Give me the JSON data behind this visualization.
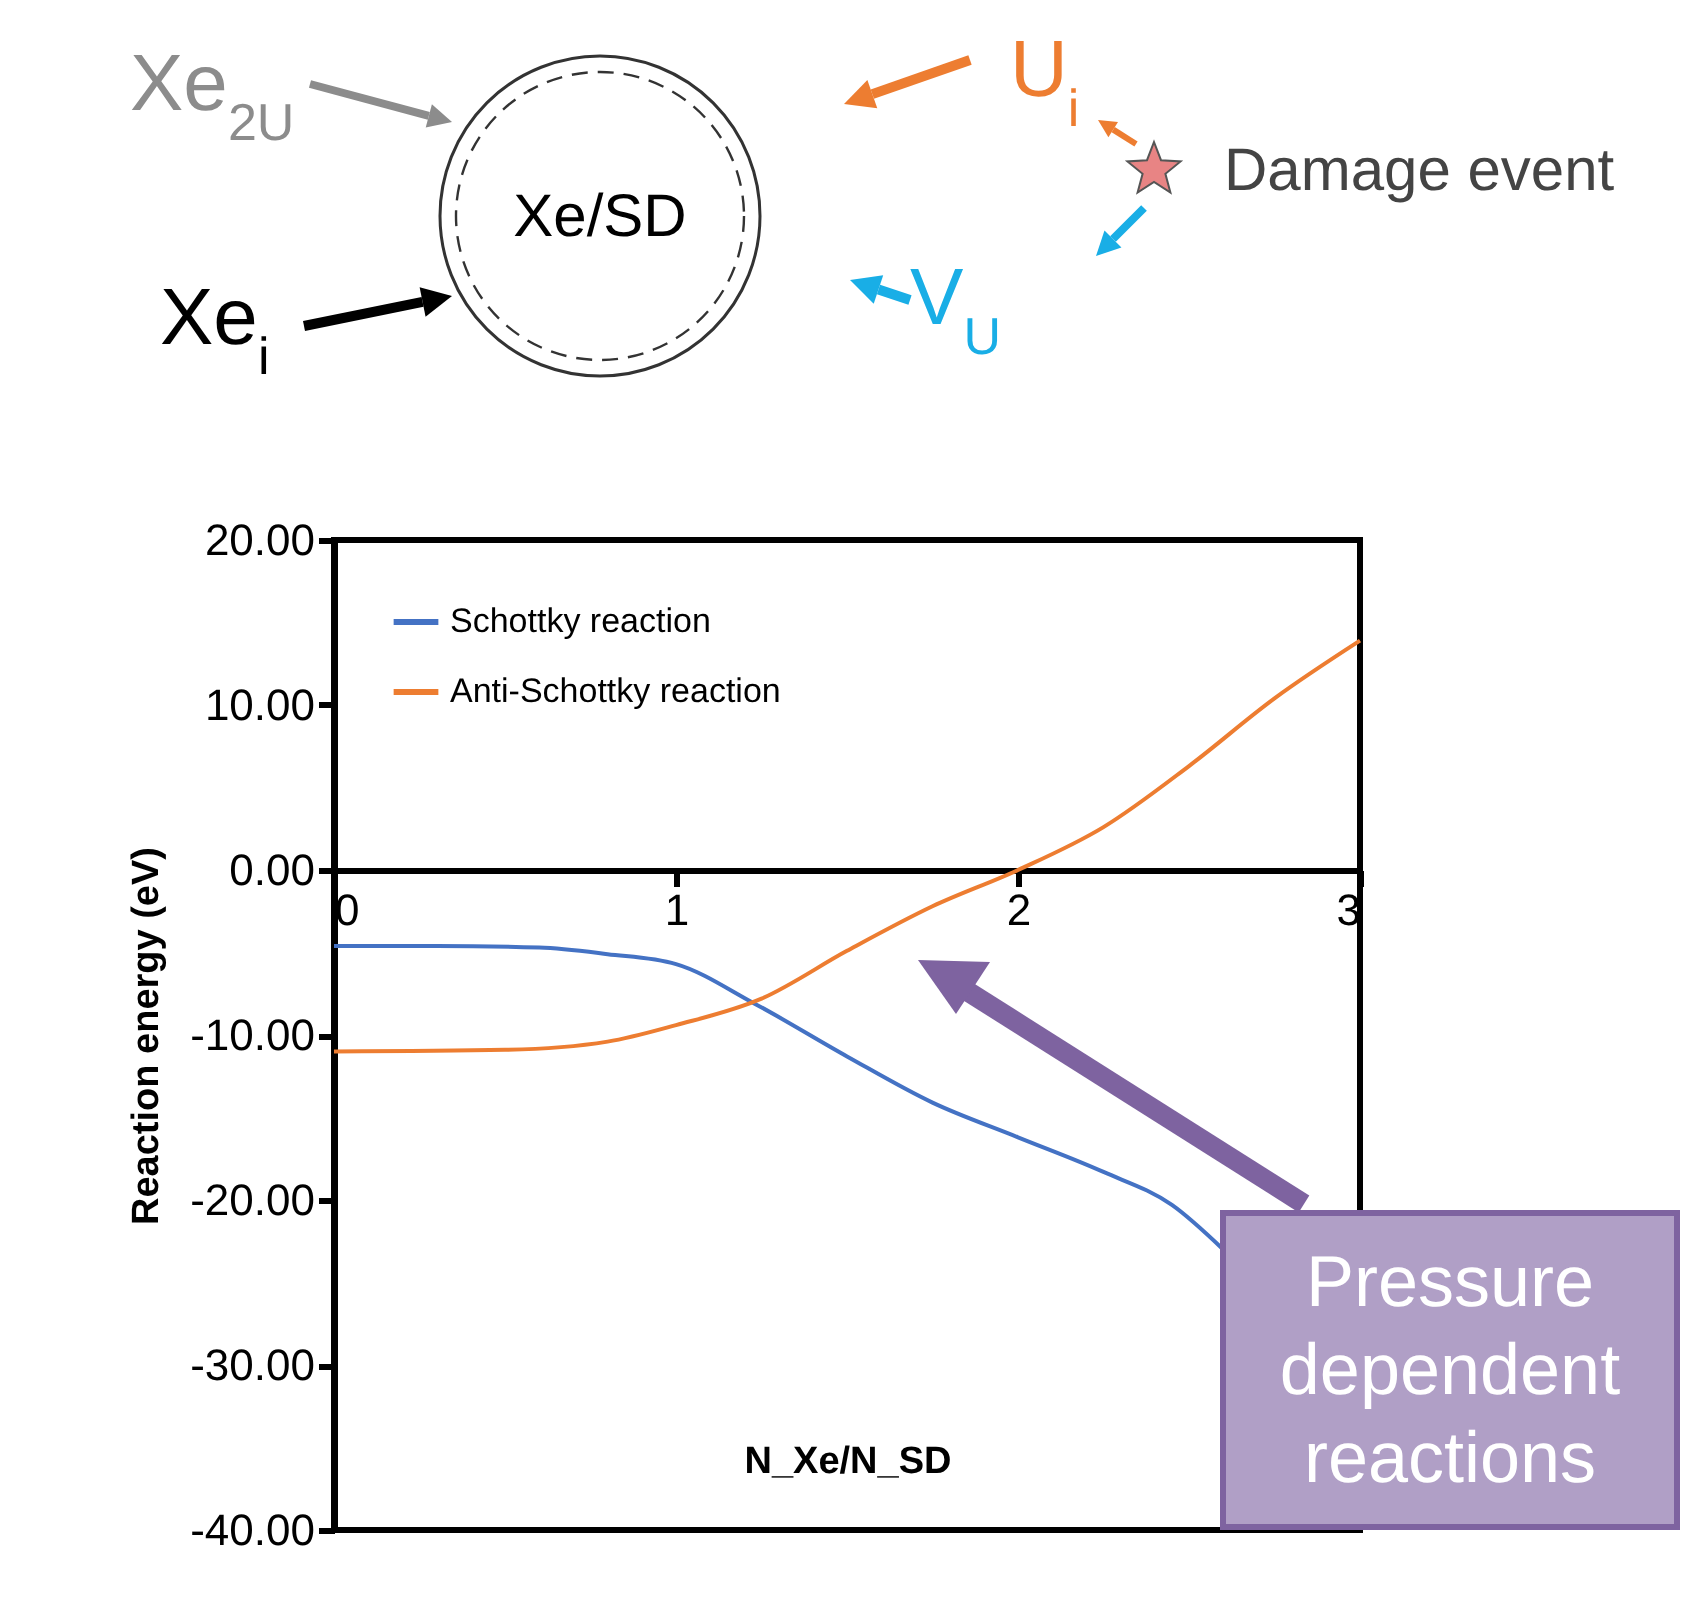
{
  "chart_data": {
    "type": "line",
    "xlabel": "N_Xe/N_SD",
    "ylabel": "Reaction energy (eV)",
    "xlim": [
      0,
      3
    ],
    "xticks": [
      0,
      1,
      2,
      3
    ],
    "ylim": [
      -40,
      20
    ],
    "yticks": [
      {
        "value": -40,
        "label": "-40.00"
      },
      {
        "value": -30,
        "label": "-30.00"
      },
      {
        "value": -20,
        "label": "-20.00"
      },
      {
        "value": -10,
        "label": "-10.00"
      },
      {
        "value": 0,
        "label": "0.00"
      },
      {
        "value": 10,
        "label": "10.00"
      },
      {
        "value": 20,
        "label": "20.00"
      }
    ],
    "series": [
      {
        "name": "Schottky reaction",
        "color": "#4472c4",
        "x": [
          0,
          0.3,
          0.6,
          0.8,
          1,
          1.23,
          1.5,
          1.75,
          2,
          2.25,
          2.45,
          2.6
        ],
        "values": [
          -4.6,
          -4.6,
          -4.7,
          -5.1,
          -5.7,
          -8.1,
          -11.3,
          -14.1,
          -16.2,
          -18.3,
          -20.3,
          -23
        ]
      },
      {
        "name": "Anti-Schottky reaction",
        "color": "#ed7d31",
        "x": [
          0,
          0.5,
          0.8,
          1,
          1.25,
          1.5,
          1.75,
          2,
          2.25,
          2.5,
          2.75,
          3
        ],
        "values": [
          -11,
          -10.9,
          -10.4,
          -9.4,
          -7.8,
          -4.9,
          -2.2,
          0,
          2.6,
          6.3,
          10.4,
          13.9
        ]
      }
    ],
    "legend": "top left",
    "grid": false,
    "marker": "none",
    "line_style": "solid",
    "annotations": [
      "Pressure dependent reactions",
      "Xe$_{2U}$",
      "Xe/SD",
      "Xe$_{i}$",
      "U$_{i}$",
      "V$_{U}$",
      "Damage event"
    ]
  }
}
